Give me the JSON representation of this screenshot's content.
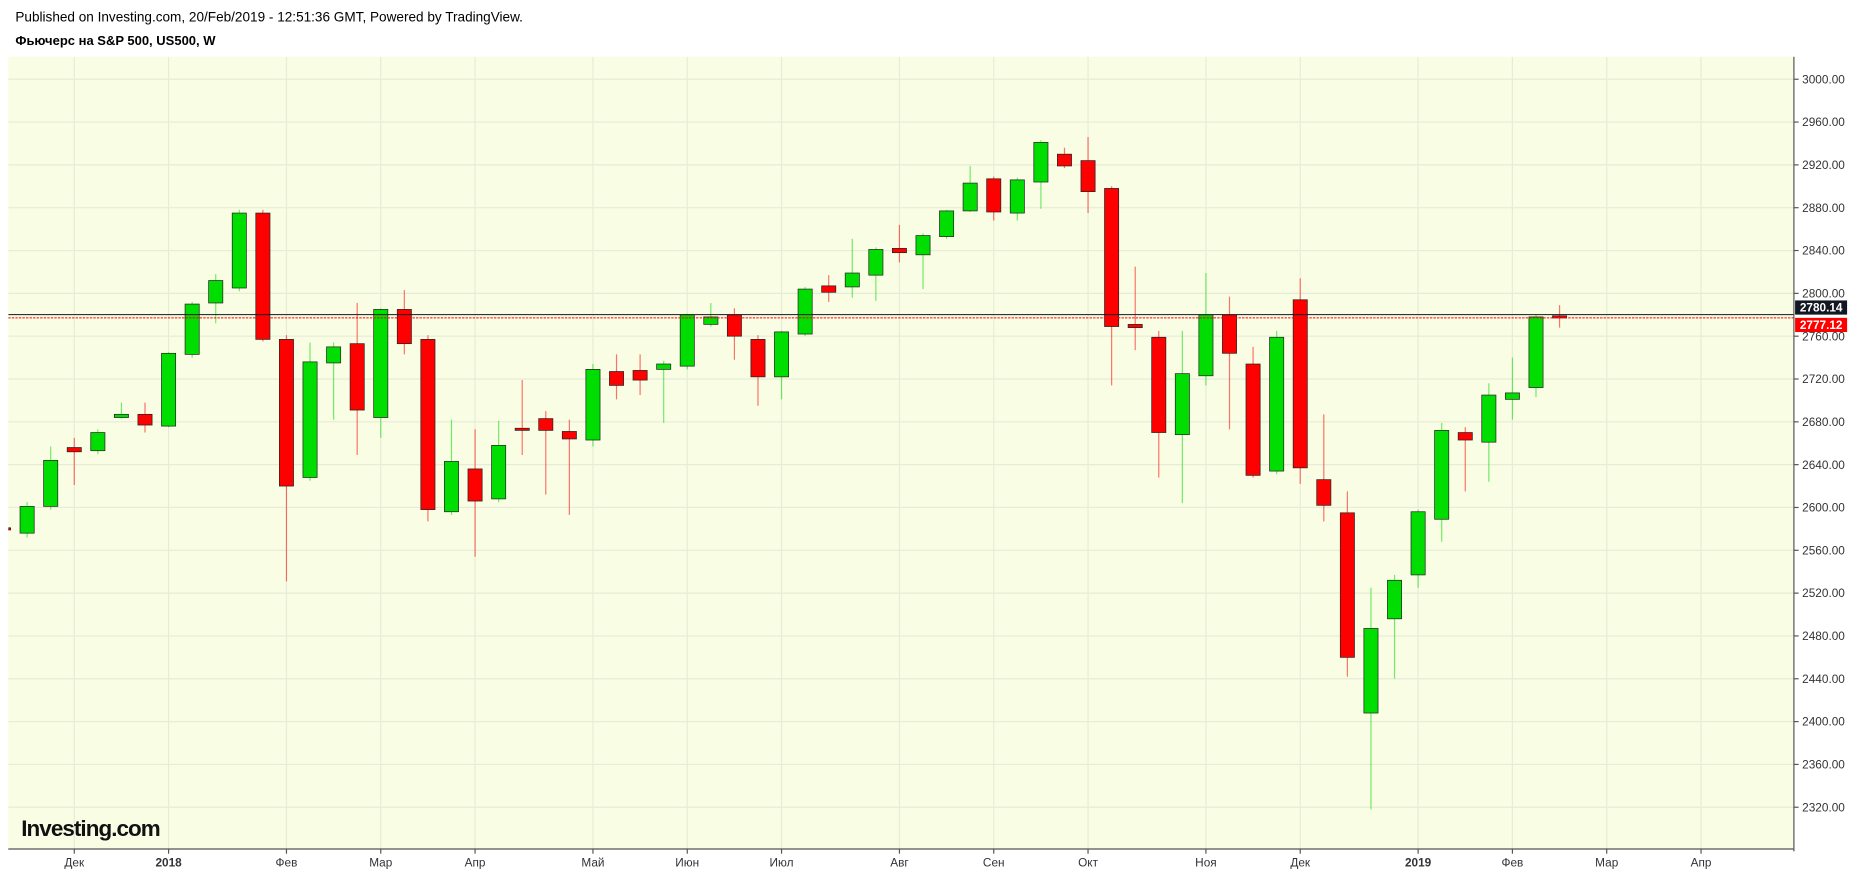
{
  "header": {
    "published": "Published on Investing.com, 20/Feb/2019 - 12:51:36 GMT, Powered by TradingView."
  },
  "logo": "Investing.com",
  "chart_data": {
    "type": "candlestick",
    "title": "Фьючерс на S&P 500, US500, W",
    "categories": [
      null,
      null,
      null,
      "Дек",
      null,
      null,
      null,
      "2018",
      null,
      null,
      null,
      null,
      "Фев",
      null,
      null,
      null,
      "Мар",
      null,
      null,
      null,
      "Апр",
      null,
      null,
      null,
      null,
      "Май",
      null,
      null,
      null,
      "Июн",
      null,
      null,
      null,
      "Июл",
      null,
      null,
      null,
      null,
      "Авг",
      null,
      null,
      null,
      "Сен",
      null,
      null,
      null,
      "Окт",
      null,
      null,
      null,
      null,
      "Ноя",
      null,
      null,
      null,
      "Дек",
      null,
      null,
      null,
      null,
      "2019",
      null,
      null,
      null,
      "Фев",
      null,
      null,
      null,
      "Мар",
      null,
      null,
      null,
      "Апр"
    ],
    "open": [
      2581,
      2576,
      2601,
      2656,
      2653,
      2684,
      2687,
      2676,
      2743,
      2791,
      2805,
      2875,
      2757,
      2628,
      2735,
      2753,
      2684,
      2785,
      2757,
      2596,
      2636,
      2608,
      2674,
      2683,
      2671,
      2663,
      2727,
      2728,
      2729,
      2732,
      2771,
      2780,
      2757,
      2722,
      2762,
      2807,
      2806,
      2817,
      2842,
      2836,
      2853,
      2877,
      2907,
      2875,
      2904,
      2930,
      2924,
      2898,
      2771,
      2759,
      2668,
      2723,
      2780,
      2734,
      2634,
      2794,
      2626,
      2595,
      2408,
      2496,
      2537,
      2589,
      2670,
      2661,
      2701,
      2712,
      2779,
      null,
      null,
      null,
      null,
      null,
      null
    ],
    "high": [
      2583,
      2605,
      2657,
      2665,
      2673,
      2698,
      2698,
      2745,
      2792,
      2818,
      2878,
      2878,
      2761,
      2754,
      2754,
      2791,
      2786,
      2803,
      2761,
      2682,
      2673,
      2681,
      2719,
      2690,
      2682,
      2734,
      2743,
      2743,
      2737,
      2781,
      2791,
      2786,
      2761,
      2765,
      2806,
      2817,
      2851,
      2843,
      2864,
      2856,
      2878,
      2919,
      2909,
      2908,
      2943,
      2936,
      2946,
      2900,
      2825,
      2765,
      2765,
      2819,
      2797,
      2750,
      2765,
      2814,
      2687,
      2615,
      2525,
      2537,
      2598,
      2679,
      2675,
      2716,
      2740,
      2780,
      2789,
      null,
      null,
      null,
      null,
      null,
      null
    ],
    "low": [
      2577,
      2572,
      2598,
      2621,
      2650,
      2683,
      2670,
      2675,
      2740,
      2772,
      2802,
      2755,
      2531,
      2625,
      2682,
      2649,
      2665,
      2743,
      2587,
      2593,
      2554,
      2605,
      2649,
      2612,
      2593,
      2657,
      2701,
      2705,
      2679,
      2729,
      2769,
      2738,
      2695,
      2701,
      2760,
      2792,
      2796,
      2793,
      2829,
      2804,
      2851,
      2876,
      2868,
      2868,
      2879,
      2917,
      2875,
      2714,
      2747,
      2628,
      2604,
      2714,
      2673,
      2628,
      2631,
      2622,
      2587,
      2442,
      2318,
      2440,
      2525,
      2568,
      2615,
      2624,
      2682,
      2703,
      2768,
      null,
      null,
      null,
      null,
      null,
      null
    ],
    "close": [
      2579,
      2601,
      2644,
      2652,
      2670,
      2687,
      2677,
      2744,
      2790,
      2812,
      2875,
      2757,
      2620,
      2736,
      2750,
      2691,
      2785,
      2753,
      2598,
      2643,
      2606,
      2658,
      2672,
      2672,
      2664,
      2729,
      2714,
      2719,
      2734,
      2780,
      2778,
      2760,
      2722,
      2764,
      2804,
      2801,
      2819,
      2841,
      2838,
      2854,
      2877,
      2903,
      2876,
      2906,
      2941,
      2919,
      2895,
      2769,
      2768,
      2670,
      2725,
      2780,
      2744,
      2630,
      2759,
      2637,
      2602,
      2460,
      2487,
      2532,
      2596,
      2672,
      2663,
      2705,
      2707,
      2778,
      2777,
      null,
      null,
      null,
      null,
      null,
      null
    ],
    "up_color": "#00dd00",
    "down_color": "#ff0000",
    "ylim": [
      2281,
      3021
    ],
    "yticks": [
      {
        "value": 2320,
        "label": "2320.00"
      },
      {
        "value": 2360,
        "label": "2360.00"
      },
      {
        "value": 2400,
        "label": "2400.00"
      },
      {
        "value": 2440,
        "label": "2440.00"
      },
      {
        "value": 2480,
        "label": "2480.00"
      },
      {
        "value": 2520,
        "label": "2520.00"
      },
      {
        "value": 2560,
        "label": "2560.00"
      },
      {
        "value": 2600,
        "label": "2600.00"
      },
      {
        "value": 2640,
        "label": "2640.00"
      },
      {
        "value": 2680,
        "label": "2680.00"
      },
      {
        "value": 2720,
        "label": "2720.00"
      },
      {
        "value": 2760,
        "label": "2760.00"
      },
      {
        "value": 2800,
        "label": "2800.00"
      },
      {
        "value": 2840,
        "label": "2840.00"
      },
      {
        "value": 2880,
        "label": "2880.00"
      },
      {
        "value": 2920,
        "label": "2920.00"
      },
      {
        "value": 2960,
        "label": "2960.00"
      },
      {
        "value": 3000,
        "label": "3000.00"
      }
    ],
    "price_lines": [
      {
        "value": 2780.14,
        "color": "#131722"
      },
      {
        "value": 2777.12,
        "color": "#ff0000"
      }
    ],
    "grid": true
  }
}
